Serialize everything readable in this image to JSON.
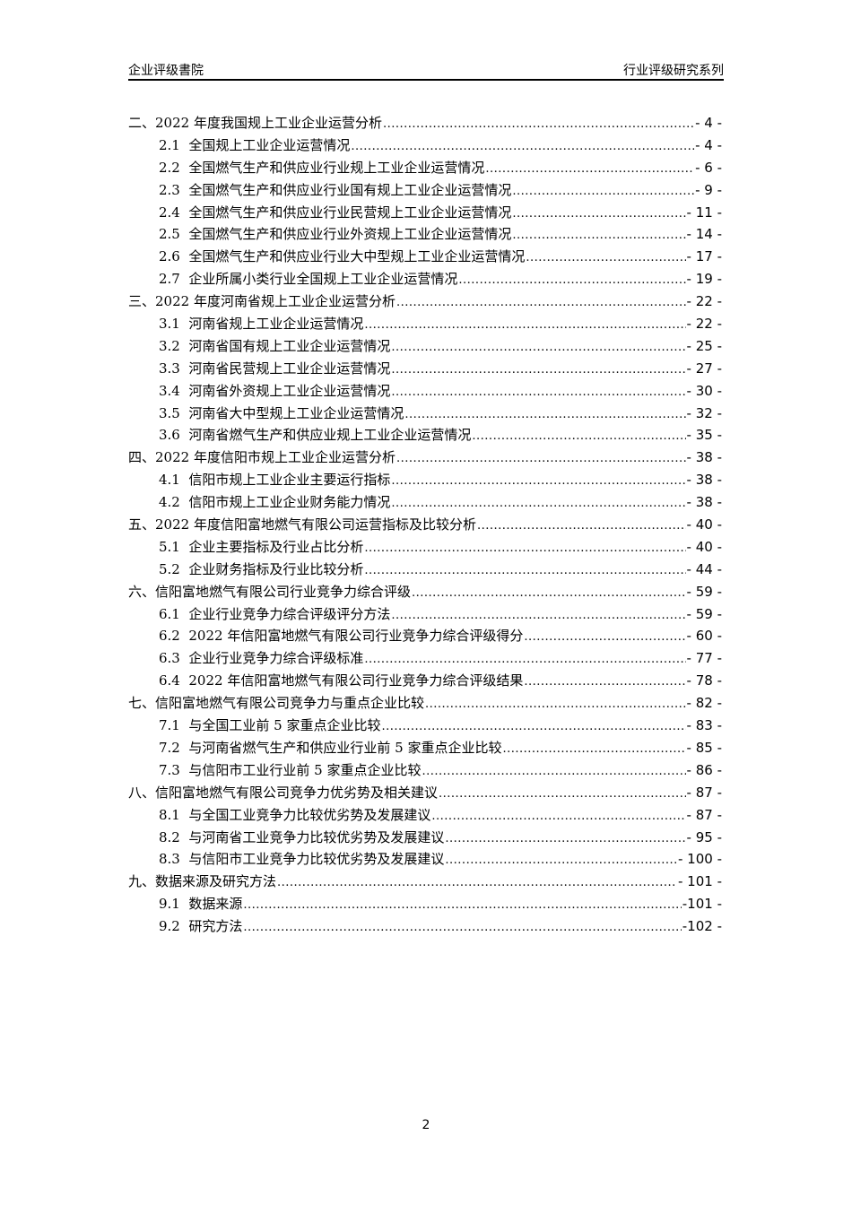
{
  "header": {
    "left": "企业评级書院",
    "right": "行业评级研究系列"
  },
  "toc": [
    {
      "level": 1,
      "title": "二、2022 年度我国规上工业企业运营分析",
      "page": "- 4 -"
    },
    {
      "level": 2,
      "title": "2.1  全国规上工业企业运营情况",
      "page": "- 4 -"
    },
    {
      "level": 2,
      "title": "2.2  全国燃气生产和供应业行业规上工业企业运营情况",
      "page": "- 6 -"
    },
    {
      "level": 2,
      "title": "2.3  全国燃气生产和供应业行业国有规上工业企业运营情况",
      "page": "- 9 -"
    },
    {
      "level": 2,
      "title": "2.4  全国燃气生产和供应业行业民营规上工业企业运营情况",
      "page": "- 11 -"
    },
    {
      "level": 2,
      "title": "2.5  全国燃气生产和供应业行业外资规上工业企业运营情况",
      "page": "- 14 -"
    },
    {
      "level": 2,
      "title": "2.6  全国燃气生产和供应业行业大中型规上工业企业运营情况",
      "page": "- 17 -"
    },
    {
      "level": 2,
      "title": "2.7  企业所属小类行业全国规上工业企业运营情况",
      "page": "- 19 -"
    },
    {
      "level": 1,
      "title": "三、2022 年度河南省规上工业企业运营分析",
      "page": "- 22 -"
    },
    {
      "level": 2,
      "title": "3.1  河南省规上工业企业运营情况",
      "page": "- 22 -"
    },
    {
      "level": 2,
      "title": "3.2  河南省国有规上工业企业运营情况",
      "page": "- 25 -"
    },
    {
      "level": 2,
      "title": "3.3  河南省民营规上工业企业运营情况",
      "page": "- 27 -"
    },
    {
      "level": 2,
      "title": "3.4  河南省外资规上工业企业运营情况",
      "page": "- 30 -"
    },
    {
      "level": 2,
      "title": "3.5  河南省大中型规上工业企业运营情况",
      "page": "- 32 -"
    },
    {
      "level": 2,
      "title": "3.6  河南省燃气生产和供应业规上工业企业运营情况",
      "page": "- 35 -"
    },
    {
      "level": 1,
      "title": "四、2022 年度信阳市规上工业企业运营分析",
      "page": "- 38 -"
    },
    {
      "level": 2,
      "title": "4.1  信阳市规上工业企业主要运行指标",
      "page": "- 38 -"
    },
    {
      "level": 2,
      "title": "4.2  信阳市规上工业企业财务能力情况",
      "page": "- 38 -"
    },
    {
      "level": 1,
      "title": "五、2022 年度信阳富地燃气有限公司运营指标及比较分析",
      "page": "- 40 -"
    },
    {
      "level": 2,
      "title": "5.1  企业主要指标及行业占比分析",
      "page": "- 40 -"
    },
    {
      "level": 2,
      "title": "5.2  企业财务指标及行业比较分析",
      "page": "- 44 -"
    },
    {
      "level": 1,
      "title": "六、信阳富地燃气有限公司行业竞争力综合评级",
      "page": "- 59 -"
    },
    {
      "level": 2,
      "title": "6.1  企业行业竞争力综合评级评分方法",
      "page": "- 59 -"
    },
    {
      "level": 2,
      "title": "6.2  2022 年信阳富地燃气有限公司行业竞争力综合评级得分",
      "page": "- 60 -"
    },
    {
      "level": 2,
      "title": "6.3  企业行业竞争力综合评级标准",
      "page": "- 77 -"
    },
    {
      "level": 2,
      "title": "6.4  2022 年信阳富地燃气有限公司行业竞争力综合评级结果",
      "page": "- 78 -"
    },
    {
      "level": 1,
      "title": "七、信阳富地燃气有限公司竞争力与重点企业比较",
      "page": "- 82 -"
    },
    {
      "level": 2,
      "title": "7.1  与全国工业前 5 家重点企业比较",
      "page": "- 83 -"
    },
    {
      "level": 2,
      "title": "7.2  与河南省燃气生产和供应业行业前 5 家重点企业比较",
      "page": "- 85 -"
    },
    {
      "level": 2,
      "title": "7.3  与信阳市工业行业前 5 家重点企业比较",
      "page": "- 86 -"
    },
    {
      "level": 1,
      "title": "八、信阳富地燃气有限公司竞争力优劣势及相关建议",
      "page": "- 87 -"
    },
    {
      "level": 2,
      "title": "8.1  与全国工业竞争力比较优劣势及发展建议",
      "page": "- 87 -"
    },
    {
      "level": 2,
      "title": "8.2  与河南省工业竞争力比较优劣势及发展建议",
      "page": "- 95 -"
    },
    {
      "level": 2,
      "title": "8.3  与信阳市工业竞争力比较优劣势及发展建议",
      "page": "- 100 -"
    },
    {
      "level": 1,
      "title": "九、数据来源及研究方法",
      "page": "- 101 -"
    },
    {
      "level": 2,
      "title": "9.1  数据来源",
      "page": "-101 -"
    },
    {
      "level": 2,
      "title": "9.2  研究方法",
      "page": "-102 -"
    }
  ],
  "footer": {
    "page_number": "2"
  }
}
